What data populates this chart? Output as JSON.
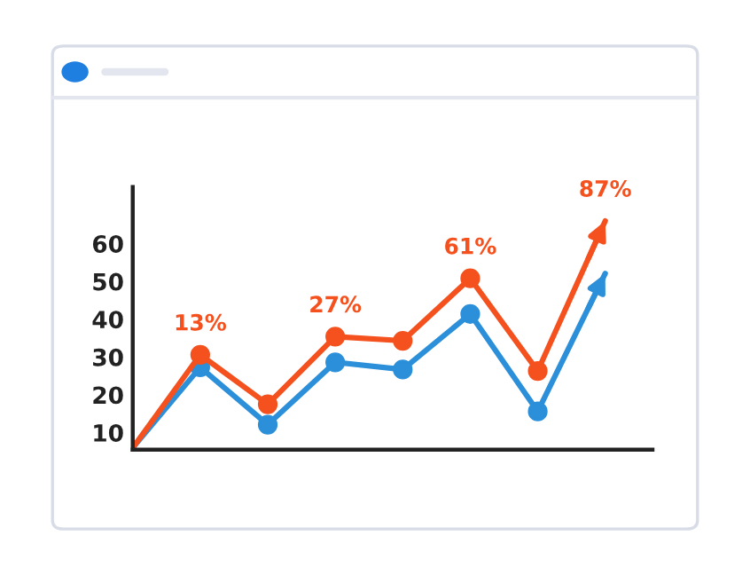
{
  "chart_data": {
    "type": "line",
    "categories": [
      null,
      null,
      null,
      null,
      null,
      null,
      null,
      null
    ],
    "ylim": [
      5.5,
      75
    ],
    "yticks": [
      10,
      20,
      30,
      40,
      50,
      60
    ],
    "tick_labels": "y",
    "marker": "circle",
    "line_style": "solid",
    "series": [
      {
        "color": "#2b8fd9",
        "values": [
          6.0,
          27.3,
          12.1,
          28.6,
          26.7,
          41.4,
          15.6,
          52.1
        ]
      },
      {
        "color": "#f4511e",
        "values": [
          6.0,
          30.6,
          17.5,
          35.4,
          34.3,
          50.8,
          26.3,
          66.0
        ]
      }
    ],
    "annotations": [
      {
        "text": "13%",
        "y": 30.6
      },
      {
        "text": "27%",
        "y": 35.4
      },
      {
        "text": "61%",
        "y": 50.8
      },
      {
        "text": "87%",
        "y": 66.0
      }
    ]
  }
}
